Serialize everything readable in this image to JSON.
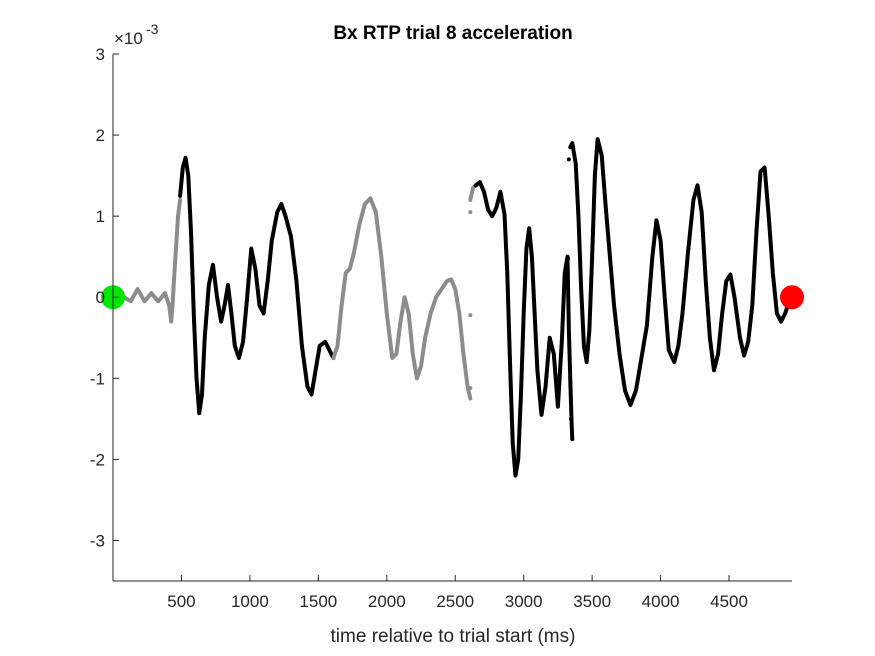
{
  "chart_data": {
    "type": "line",
    "title": "Bx  RTP trial 8 acceleration",
    "xlabel": "time relative to trial start (ms)",
    "ylabel": "",
    "y_multiplier_label": "×10",
    "y_multiplier_exponent": "-3",
    "xlim": [
      0,
      4960
    ],
    "ylim": [
      -3.5,
      3
    ],
    "x_ticks": [
      500,
      1000,
      1500,
      2000,
      2500,
      3000,
      3500,
      4000,
      4500
    ],
    "x_tick_labels": [
      "500",
      "1000",
      "1500",
      "2000",
      "2500",
      "3000",
      "3500",
      "4000",
      "4500"
    ],
    "y_ticks": [
      -3,
      -2,
      -1,
      0,
      1,
      2,
      3
    ],
    "y_tick_labels": [
      "-3",
      "-2",
      "-1",
      "0",
      "1",
      "2",
      "3"
    ],
    "grid": false,
    "colors": {
      "black": "#000000",
      "gray": "#8c8c8c",
      "start": "#00e600",
      "end": "#ff0000"
    },
    "series": [
      {
        "color": "gray",
        "points": [
          [
            0,
            0
          ],
          [
            80,
            0.0
          ],
          [
            130,
            -0.05
          ],
          [
            180,
            0.1
          ],
          [
            230,
            -0.05
          ],
          [
            280,
            0.05
          ],
          [
            330,
            -0.05
          ],
          [
            380,
            0.05
          ],
          [
            410,
            -0.1
          ],
          [
            425,
            -0.3
          ],
          [
            435,
            -0.1
          ],
          [
            445,
            0.2
          ],
          [
            460,
            0.6
          ],
          [
            475,
            1.0
          ],
          [
            490,
            1.2
          ]
        ]
      },
      {
        "color": "black",
        "points": [
          [
            490,
            1.25
          ],
          [
            510,
            1.6
          ],
          [
            530,
            1.72
          ],
          [
            550,
            1.5
          ],
          [
            570,
            0.8
          ],
          [
            590,
            -0.2
          ],
          [
            610,
            -1.0
          ],
          [
            630,
            -1.43
          ],
          [
            650,
            -1.2
          ],
          [
            670,
            -0.5
          ],
          [
            700,
            0.15
          ],
          [
            730,
            0.4
          ],
          [
            760,
            0.0
          ],
          [
            790,
            -0.3
          ],
          [
            815,
            -0.1
          ],
          [
            840,
            0.15
          ],
          [
            865,
            -0.2
          ],
          [
            890,
            -0.6
          ],
          [
            920,
            -0.75
          ],
          [
            950,
            -0.55
          ],
          [
            980,
            0.0
          ],
          [
            1010,
            0.6
          ],
          [
            1040,
            0.35
          ],
          [
            1070,
            -0.1
          ],
          [
            1100,
            -0.2
          ],
          [
            1130,
            0.2
          ],
          [
            1160,
            0.7
          ],
          [
            1200,
            1.05
          ],
          [
            1230,
            1.15
          ],
          [
            1260,
            1.0
          ],
          [
            1300,
            0.75
          ],
          [
            1340,
            0.2
          ],
          [
            1380,
            -0.6
          ],
          [
            1420,
            -1.1
          ],
          [
            1450,
            -1.2
          ],
          [
            1480,
            -0.9
          ],
          [
            1510,
            -0.6
          ],
          [
            1550,
            -0.55
          ],
          [
            1580,
            -0.65
          ],
          [
            1610,
            -0.75
          ]
        ]
      },
      {
        "color": "gray",
        "points": [
          [
            1610,
            -0.75
          ],
          [
            1640,
            -0.6
          ],
          [
            1670,
            -0.1
          ],
          [
            1700,
            0.3
          ],
          [
            1730,
            0.35
          ],
          [
            1760,
            0.55
          ],
          [
            1800,
            0.9
          ],
          [
            1840,
            1.15
          ],
          [
            1880,
            1.22
          ],
          [
            1920,
            1.05
          ],
          [
            1960,
            0.5
          ],
          [
            2000,
            -0.2
          ],
          [
            2040,
            -0.75
          ],
          [
            2070,
            -0.7
          ],
          [
            2100,
            -0.3
          ],
          [
            2130,
            0.0
          ],
          [
            2160,
            -0.2
          ],
          [
            2190,
            -0.7
          ],
          [
            2220,
            -1.0
          ],
          [
            2250,
            -0.85
          ],
          [
            2280,
            -0.5
          ],
          [
            2320,
            -0.2
          ],
          [
            2360,
            0.0
          ],
          [
            2400,
            0.1
          ],
          [
            2440,
            0.2
          ],
          [
            2470,
            0.22
          ],
          [
            2500,
            0.1
          ],
          [
            2530,
            -0.2
          ],
          [
            2560,
            -0.7
          ],
          [
            2590,
            -1.1
          ],
          [
            2610,
            -1.25
          ]
        ]
      },
      {
        "color": "gray",
        "points": [
          [
            2610,
            1.2
          ],
          [
            2630,
            1.35
          ],
          [
            2650,
            1.38
          ]
        ]
      },
      {
        "color": "black",
        "points": [
          [
            2650,
            1.38
          ],
          [
            2680,
            1.42
          ],
          [
            2710,
            1.3
          ],
          [
            2740,
            1.08
          ],
          [
            2770,
            1.0
          ],
          [
            2800,
            1.1
          ],
          [
            2830,
            1.3
          ],
          [
            2860,
            1.02
          ],
          [
            2880,
            0.3
          ],
          [
            2900,
            -0.8
          ],
          [
            2920,
            -1.8
          ],
          [
            2940,
            -2.2
          ],
          [
            2960,
            -2.0
          ],
          [
            2980,
            -1.2
          ],
          [
            3000,
            -0.2
          ],
          [
            3020,
            0.6
          ],
          [
            3040,
            0.85
          ],
          [
            3060,
            0.5
          ],
          [
            3080,
            -0.2
          ],
          [
            3100,
            -0.9
          ],
          [
            3130,
            -1.45
          ],
          [
            3160,
            -1.1
          ],
          [
            3190,
            -0.5
          ],
          [
            3220,
            -0.7
          ],
          [
            3250,
            -1.35
          ],
          [
            3280,
            -0.5
          ],
          [
            3300,
            0.3
          ],
          [
            3320,
            0.5
          ],
          [
            3330,
            -0.4
          ],
          [
            3340,
            -1.0
          ],
          [
            3350,
            -1.55
          ],
          [
            3355,
            -1.75
          ]
        ]
      },
      {
        "color": "black",
        "points": [
          [
            3340,
            1.85
          ],
          [
            3355,
            1.9
          ],
          [
            3380,
            1.65
          ],
          [
            3400,
            1.0
          ],
          [
            3420,
            0.1
          ],
          [
            3440,
            -0.6
          ],
          [
            3460,
            -0.8
          ],
          [
            3480,
            -0.4
          ],
          [
            3500,
            0.5
          ],
          [
            3520,
            1.5
          ],
          [
            3540,
            1.95
          ],
          [
            3570,
            1.75
          ],
          [
            3600,
            1.1
          ],
          [
            3630,
            0.5
          ],
          [
            3660,
            -0.1
          ],
          [
            3700,
            -0.7
          ],
          [
            3740,
            -1.15
          ],
          [
            3780,
            -1.33
          ],
          [
            3820,
            -1.15
          ],
          [
            3860,
            -0.75
          ],
          [
            3900,
            -0.35
          ],
          [
            3940,
            0.5
          ],
          [
            3970,
            0.95
          ],
          [
            4000,
            0.7
          ],
          [
            4030,
            0.0
          ],
          [
            4060,
            -0.65
          ],
          [
            4100,
            -0.8
          ],
          [
            4130,
            -0.6
          ],
          [
            4160,
            -0.2
          ],
          [
            4200,
            0.55
          ],
          [
            4240,
            1.2
          ],
          [
            4270,
            1.38
          ],
          [
            4300,
            1.05
          ],
          [
            4330,
            0.2
          ],
          [
            4360,
            -0.5
          ],
          [
            4390,
            -0.9
          ],
          [
            4420,
            -0.7
          ],
          [
            4450,
            -0.2
          ],
          [
            4480,
            0.2
          ],
          [
            4510,
            0.28
          ],
          [
            4540,
            0.0
          ],
          [
            4580,
            -0.5
          ],
          [
            4610,
            -0.72
          ],
          [
            4640,
            -0.55
          ],
          [
            4670,
            -0.1
          ],
          [
            4700,
            0.8
          ],
          [
            4730,
            1.55
          ],
          [
            4760,
            1.6
          ],
          [
            4790,
            1.0
          ],
          [
            4820,
            0.3
          ],
          [
            4850,
            -0.2
          ],
          [
            4880,
            -0.3
          ],
          [
            4910,
            -0.2
          ],
          [
            4940,
            -0.05
          ],
          [
            4960,
            0.0
          ]
        ]
      }
    ],
    "isolated_points": [
      {
        "color": "gray",
        "x": 2610,
        "y": 1.05
      },
      {
        "color": "gray",
        "x": 2610,
        "y": -0.22
      },
      {
        "color": "gray",
        "x": 2610,
        "y": -1.12
      },
      {
        "color": "black",
        "x": 3325,
        "y": 0.48
      },
      {
        "color": "black",
        "x": 3330,
        "y": 1.7
      },
      {
        "color": "black",
        "x": 3345,
        "y": -1.5
      }
    ],
    "markers": [
      {
        "name": "start",
        "x": 0,
        "y": 0,
        "color": "start"
      },
      {
        "name": "end",
        "x": 4960,
        "y": 0,
        "color": "end"
      }
    ]
  }
}
